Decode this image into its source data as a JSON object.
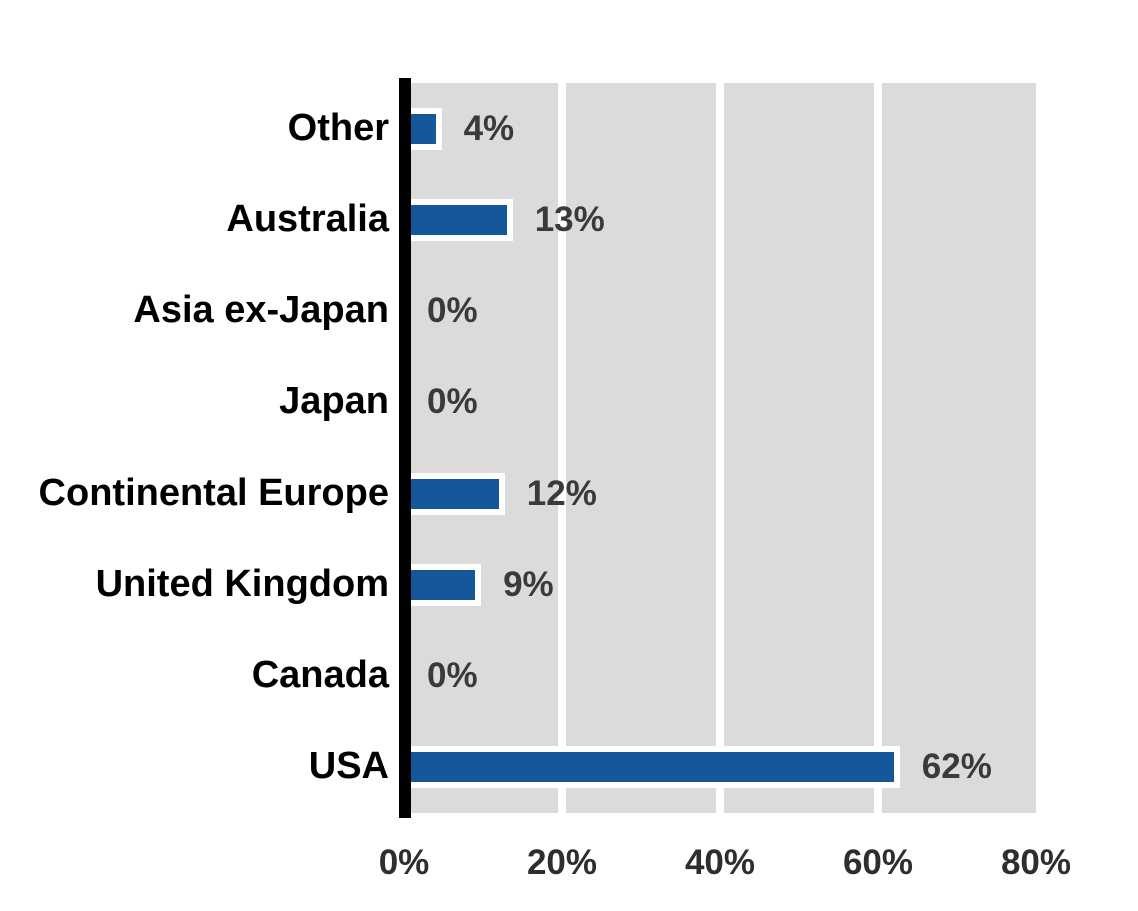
{
  "chart_data": {
    "type": "bar",
    "orientation": "horizontal",
    "title": "",
    "categories": [
      "Other",
      "Australia",
      "Asia ex-Japan",
      "Japan",
      "Continental Europe",
      "United Kingdom",
      "Canada",
      "USA"
    ],
    "values": [
      4,
      13,
      0,
      0,
      12,
      9,
      0,
      62
    ],
    "value_labels": [
      "4%",
      "13%",
      "0%",
      "0%",
      "12%",
      "9%",
      "0%",
      "62%"
    ],
    "x_tick_values": [
      0,
      20,
      40,
      60,
      80
    ],
    "x_tick_labels": [
      "0%",
      "20%",
      "40%",
      "60%",
      "80%"
    ],
    "xlim": [
      0,
      80
    ],
    "ylabel": "",
    "xlabel": "",
    "legend": "none",
    "grid": "vertical-white-gridlines",
    "colors": {
      "bar_fill": "#14579b",
      "bar_outline": "#ffffff",
      "plot_background": "#dbdbdb",
      "gridline": "#ffffff",
      "axis_line": "#000000",
      "category_text": "#000000",
      "value_text": "#3a3a3a",
      "tick_text": "#2e2e2e"
    }
  }
}
